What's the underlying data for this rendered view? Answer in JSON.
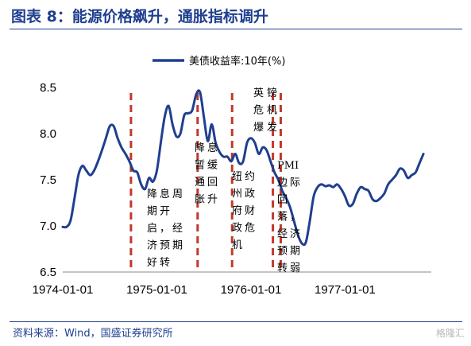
{
  "header": {
    "title": "图表 8：能源价格飙升，通胀指标调升"
  },
  "footer": {
    "source": "资料来源：Wind，国盛证券研究所",
    "watermark": "格隆汇"
  },
  "chart_data": {
    "type": "line",
    "legend": {
      "position": "top",
      "label": "美债收益率:10年(%)"
    },
    "ylim": [
      6.5,
      8.5
    ],
    "yticks": [
      "6.5",
      "7.0",
      "7.5",
      "8.0",
      "8.5"
    ],
    "xticks": [
      {
        "label": "1974-01-01",
        "x": 0
      },
      {
        "label": "1975-01-01",
        "x": 12
      },
      {
        "label": "1976-01-01",
        "x": 24
      },
      {
        "label": "1977-01-01",
        "x": 36
      }
    ],
    "xlim": [
      0,
      47
    ],
    "grid": false,
    "series": [
      {
        "name": "美债收益率:10年(%)",
        "color": "#1f3f8f",
        "x": [
          0,
          0.5,
          1,
          1.5,
          2,
          2.5,
          3,
          3.5,
          4,
          4.5,
          5,
          5.5,
          6,
          6.5,
          7,
          7.5,
          8,
          8.5,
          9,
          9.5,
          10,
          10.5,
          11,
          11.5,
          12,
          12.5,
          13,
          13.5,
          14,
          14.5,
          15,
          15.5,
          16,
          16.5,
          17,
          17.5,
          18,
          18.5,
          19,
          19.5,
          20,
          20.5,
          21,
          21.5,
          22,
          22.5,
          23,
          23.5,
          24,
          24.5,
          25,
          25.5,
          26,
          26.5,
          27,
          27.5,
          28,
          28.5,
          29,
          29.5,
          30,
          30.5,
          31,
          31.5,
          32,
          32.5,
          33,
          33.5,
          34,
          34.5,
          35,
          35.5,
          36,
          36.5,
          37,
          37.5,
          38,
          38.5,
          39,
          39.5,
          40,
          40.5,
          41,
          41.5,
          42,
          42.5,
          43,
          43.5,
          44,
          44.5,
          45,
          45.5,
          46
        ],
        "values": [
          6.99,
          6.99,
          7.06,
          7.3,
          7.55,
          7.65,
          7.6,
          7.55,
          7.6,
          7.7,
          7.82,
          7.95,
          8.08,
          8.08,
          7.95,
          7.85,
          7.78,
          7.7,
          7.6,
          7.58,
          7.45,
          7.4,
          7.52,
          7.48,
          7.6,
          7.9,
          8.18,
          8.3,
          8.1,
          7.97,
          8.0,
          8.2,
          8.22,
          8.25,
          8.42,
          8.45,
          8.18,
          7.92,
          8.1,
          7.9,
          7.8,
          7.75,
          7.75,
          7.7,
          7.78,
          7.68,
          7.7,
          7.9,
          7.95,
          7.9,
          7.78,
          7.85,
          7.82,
          7.7,
          7.58,
          7.5,
          7.38,
          7.3,
          7.2,
          7.05,
          6.9,
          6.81,
          6.82,
          7.05,
          7.32,
          7.42,
          7.45,
          7.43,
          7.44,
          7.42,
          7.45,
          7.4,
          7.32,
          7.22,
          7.24,
          7.35,
          7.42,
          7.4,
          7.38,
          7.29,
          7.27,
          7.3,
          7.35,
          7.45,
          7.5,
          7.55,
          7.62,
          7.6,
          7.52,
          7.55,
          7.58,
          7.68,
          7.78
        ]
      }
    ],
    "events": [
      {
        "x": 8.7,
        "label": "降息周期开启，经济预期好转"
      },
      {
        "x": 17.2,
        "label": "降息暂缓通胀回升"
      },
      {
        "x": 21.6,
        "label": "纽约州政府财政危机"
      },
      {
        "x": 26.8,
        "label": "英镑危机爆发"
      },
      {
        "x": 27.8,
        "label": "PMI边际回落，经济预期转弱"
      }
    ]
  }
}
